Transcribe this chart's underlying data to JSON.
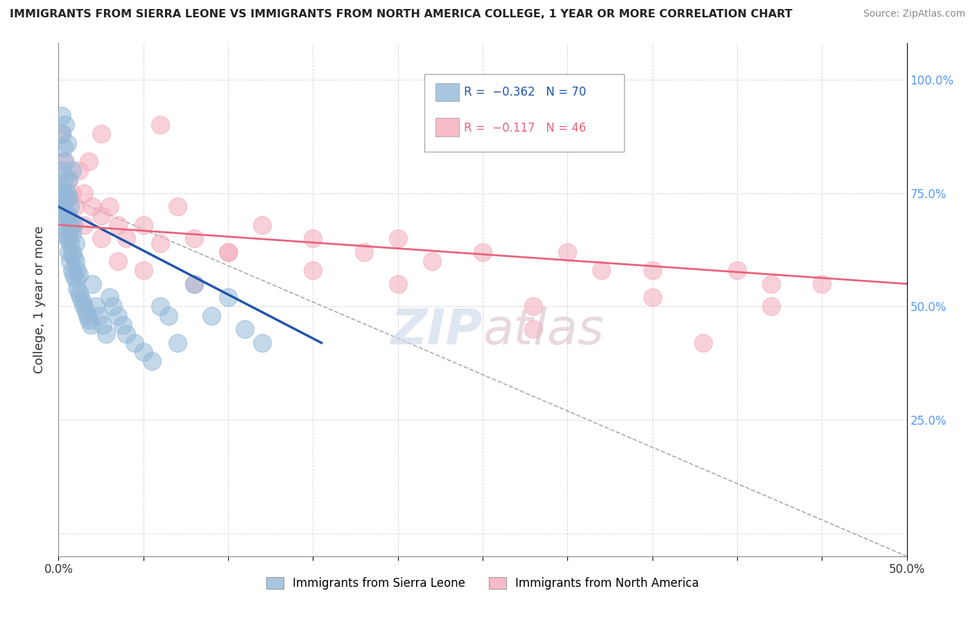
{
  "title": "IMMIGRANTS FROM SIERRA LEONE VS IMMIGRANTS FROM NORTH AMERICA COLLEGE, 1 YEAR OR MORE CORRELATION CHART",
  "source": "Source: ZipAtlas.com",
  "ylabel": "College, 1 year or more",
  "xlim": [
    0.0,
    0.5
  ],
  "ylim": [
    -0.05,
    1.08
  ],
  "legend_r1": "-0.362",
  "legend_n1": "70",
  "legend_r2": "-0.117",
  "legend_n2": "46",
  "blue_color": "#93B8D8",
  "pink_color": "#F4AABB",
  "blue_line_color": "#2255AA",
  "pink_line_color": "#E8637A",
  "background_color": "#FFFFFF",
  "grid_color": "#CCCCCC",
  "blue_scatter_x": [
    0.002,
    0.002,
    0.002,
    0.003,
    0.003,
    0.003,
    0.003,
    0.004,
    0.004,
    0.004,
    0.005,
    0.005,
    0.005,
    0.006,
    0.006,
    0.006,
    0.006,
    0.007,
    0.007,
    0.007,
    0.008,
    0.008,
    0.008,
    0.009,
    0.009,
    0.01,
    0.01,
    0.01,
    0.011,
    0.011,
    0.012,
    0.012,
    0.013,
    0.014,
    0.015,
    0.016,
    0.017,
    0.018,
    0.019,
    0.02,
    0.022,
    0.024,
    0.026,
    0.028,
    0.03,
    0.032,
    0.035,
    0.038,
    0.04,
    0.045,
    0.05,
    0.055,
    0.06,
    0.065,
    0.07,
    0.08,
    0.09,
    0.1,
    0.11,
    0.12,
    0.003,
    0.004,
    0.005,
    0.006,
    0.007,
    0.002,
    0.008,
    0.009,
    0.003,
    0.002
  ],
  "blue_scatter_y": [
    0.72,
    0.76,
    0.8,
    0.68,
    0.72,
    0.78,
    0.82,
    0.66,
    0.7,
    0.74,
    0.65,
    0.7,
    0.75,
    0.62,
    0.66,
    0.7,
    0.74,
    0.6,
    0.64,
    0.68,
    0.58,
    0.62,
    0.66,
    0.57,
    0.61,
    0.56,
    0.6,
    0.64,
    0.54,
    0.58,
    0.53,
    0.57,
    0.52,
    0.51,
    0.5,
    0.49,
    0.48,
    0.47,
    0.46,
    0.55,
    0.5,
    0.48,
    0.46,
    0.44,
    0.52,
    0.5,
    0.48,
    0.46,
    0.44,
    0.42,
    0.4,
    0.38,
    0.5,
    0.48,
    0.42,
    0.55,
    0.48,
    0.52,
    0.45,
    0.42,
    0.85,
    0.9,
    0.86,
    0.78,
    0.72,
    0.92,
    0.8,
    0.68,
    0.75,
    0.88
  ],
  "pink_scatter_x": [
    0.002,
    0.004,
    0.006,
    0.008,
    0.01,
    0.012,
    0.015,
    0.018,
    0.02,
    0.025,
    0.03,
    0.035,
    0.04,
    0.05,
    0.06,
    0.07,
    0.08,
    0.1,
    0.12,
    0.15,
    0.18,
    0.2,
    0.22,
    0.25,
    0.28,
    0.3,
    0.32,
    0.35,
    0.38,
    0.4,
    0.42,
    0.45,
    0.008,
    0.015,
    0.025,
    0.035,
    0.05,
    0.08,
    0.1,
    0.15,
    0.2,
    0.28,
    0.35,
    0.42,
    0.025,
    0.06
  ],
  "pink_scatter_y": [
    0.88,
    0.82,
    0.78,
    0.75,
    0.72,
    0.8,
    0.68,
    0.82,
    0.72,
    0.7,
    0.72,
    0.68,
    0.65,
    0.68,
    0.64,
    0.72,
    0.65,
    0.62,
    0.68,
    0.65,
    0.62,
    0.65,
    0.6,
    0.62,
    0.45,
    0.62,
    0.58,
    0.58,
    0.42,
    0.58,
    0.55,
    0.55,
    0.68,
    0.75,
    0.65,
    0.6,
    0.58,
    0.55,
    0.62,
    0.58,
    0.55,
    0.5,
    0.52,
    0.5,
    0.88,
    0.9
  ],
  "blue_trend_x": [
    0.0,
    0.155
  ],
  "blue_trend_y": [
    0.72,
    0.42
  ],
  "pink_trend_x": [
    0.0,
    0.5
  ],
  "pink_trend_y": [
    0.68,
    0.55
  ],
  "dash_line_x": [
    0.0,
    0.5
  ],
  "dash_line_y": [
    0.75,
    -0.05
  ]
}
